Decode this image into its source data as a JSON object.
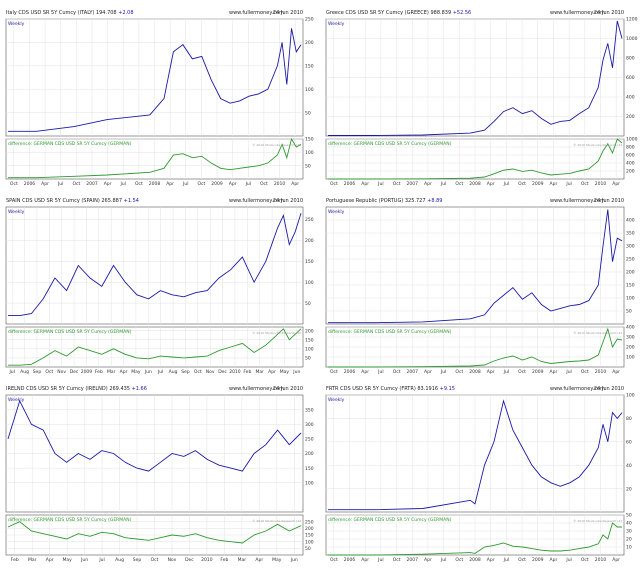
{
  "site": "www.fullermoney.com",
  "date": "24 Jun 2010",
  "copyright": "© 2010 Stockcube Research Ltd",
  "weekly_label": "Weekly",
  "diff_label": "difference: GERMAN CDS USD SR 5Y Cumcy (GERMAN)",
  "colors": {
    "main": "#1a1aa6",
    "diff": "#2e9a2e",
    "grid": "#e2e2e2",
    "frame": "#555555"
  },
  "chart_data": [
    {
      "type": "line",
      "title": "Italy CDS USD SR 5Y Cumcy (ITALY) 194.708",
      "change": "+2.08",
      "xlabels": [
        "Oct",
        "2006",
        "Apr",
        "Jul",
        "Oct",
        "2007",
        "Apr",
        "Jul",
        "Oct",
        "2008",
        "Apr",
        "Jul",
        "Oct",
        "2009",
        "Apr",
        "Jul",
        "Oct",
        "2010",
        "Apr"
      ],
      "ylim": [
        0,
        250
      ],
      "yticks": [
        50,
        100,
        150,
        200,
        250
      ],
      "x": [
        0,
        6,
        14,
        21,
        30,
        33,
        35,
        37,
        39,
        41,
        43,
        45,
        47,
        49,
        51,
        53,
        55,
        57,
        58,
        59,
        60,
        61,
        62
      ],
      "y": [
        10,
        10,
        20,
        35,
        45,
        80,
        180,
        195,
        165,
        170,
        120,
        80,
        70,
        75,
        85,
        90,
        100,
        150,
        200,
        110,
        230,
        180,
        195
      ],
      "diff_ylim": [
        0,
        150
      ],
      "diff_yticks": [
        50,
        100,
        150
      ],
      "diff_y": [
        5,
        5,
        10,
        15,
        25,
        40,
        90,
        95,
        80,
        85,
        60,
        40,
        35,
        40,
        45,
        50,
        60,
        90,
        130,
        80,
        150,
        120,
        130
      ]
    },
    {
      "type": "line",
      "title": "Greece CDS USD SR 5Y Cumcy (GREECE) 988.839",
      "change": "+52.56",
      "xlabels": [
        "Oct",
        "2006",
        "Apr",
        "Jul",
        "Oct",
        "2007",
        "Apr",
        "Jul",
        "Oct",
        "2008",
        "Apr",
        "Jul",
        "Oct",
        "2009",
        "Apr",
        "Jul",
        "Oct",
        "2010",
        "Apr"
      ],
      "ylim": [
        0,
        1200
      ],
      "yticks": [
        200,
        400,
        600,
        800,
        1000,
        1200
      ],
      "x": [
        0,
        10,
        20,
        30,
        33,
        35,
        37,
        39,
        41,
        43,
        45,
        47,
        49,
        51,
        53,
        55,
        57,
        58,
        59,
        60,
        61,
        62
      ],
      "y": [
        5,
        5,
        10,
        30,
        60,
        150,
        250,
        290,
        230,
        260,
        180,
        120,
        150,
        160,
        230,
        290,
        500,
        780,
        950,
        700,
        1180,
        1000
      ],
      "diff_ylim": [
        0,
        1000
      ],
      "diff_yticks": [
        200,
        400,
        600,
        800,
        1000
      ],
      "diff_y": [
        0,
        0,
        5,
        20,
        50,
        130,
        220,
        250,
        190,
        220,
        150,
        100,
        120,
        140,
        200,
        250,
        450,
        700,
        880,
        650,
        1000,
        900
      ]
    },
    {
      "type": "line",
      "title": "SPAIN CDS USD SR 5Y Cumcy (SPAIN) 265.887",
      "change": "+1.54",
      "xlabels": [
        "Jul",
        "Aug",
        "Sep",
        "Oct",
        "Nov",
        "Dec",
        "2009",
        "Feb",
        "Mar",
        "Apr",
        "May",
        "Jun",
        "Jul",
        "Aug",
        "Sep",
        "Oct",
        "Nov",
        "Dec",
        "2010",
        "Feb",
        "Mar",
        "Apr",
        "May",
        "Jun"
      ],
      "ylim": [
        0,
        280
      ],
      "yticks": [
        50,
        100,
        150,
        200,
        250
      ],
      "x": [
        0,
        2,
        4,
        6,
        8,
        10,
        12,
        14,
        16,
        18,
        20,
        22,
        24,
        26,
        28,
        30,
        32,
        34,
        36,
        38,
        40,
        42,
        44,
        46,
        47,
        48,
        49,
        50
      ],
      "y": [
        20,
        20,
        25,
        60,
        110,
        80,
        140,
        110,
        90,
        140,
        100,
        70,
        60,
        80,
        70,
        65,
        75,
        80,
        110,
        130,
        160,
        100,
        150,
        230,
        260,
        190,
        220,
        265
      ],
      "diff_ylim": [
        0,
        220
      ],
      "diff_yticks": [
        50,
        100,
        150,
        200
      ],
      "diff_y": [
        10,
        10,
        15,
        50,
        90,
        60,
        110,
        90,
        70,
        100,
        70,
        50,
        45,
        60,
        55,
        50,
        55,
        60,
        90,
        110,
        130,
        80,
        120,
        180,
        210,
        150,
        180,
        210
      ]
    },
    {
      "type": "line",
      "title": "Portuguese Republic (PORTUG) 325.727",
      "change": "+8.89",
      "xlabels": [
        "Oct",
        "2006",
        "Apr",
        "Jul",
        "Oct",
        "2007",
        "Apr",
        "Jul",
        "Oct",
        "2008",
        "Apr",
        "Jul",
        "Oct",
        "2009",
        "Apr",
        "Jul",
        "Oct",
        "2010",
        "Apr"
      ],
      "ylim": [
        0,
        450
      ],
      "yticks": [
        50,
        100,
        150,
        200,
        250,
        300,
        350,
        400
      ],
      "x": [
        0,
        10,
        20,
        30,
        33,
        35,
        37,
        39,
        41,
        43,
        45,
        47,
        49,
        51,
        53,
        55,
        57,
        58,
        59,
        60,
        61,
        62
      ],
      "y": [
        5,
        5,
        8,
        20,
        35,
        80,
        110,
        140,
        95,
        120,
        75,
        50,
        60,
        70,
        75,
        90,
        150,
        300,
        440,
        240,
        330,
        320
      ],
      "diff_ylim": [
        0,
        400
      ],
      "diff_yticks": [
        100,
        200,
        300,
        400
      ],
      "diff_y": [
        0,
        0,
        3,
        10,
        20,
        60,
        90,
        110,
        70,
        100,
        55,
        35,
        45,
        55,
        60,
        70,
        120,
        250,
        380,
        200,
        280,
        270
      ]
    },
    {
      "type": "line",
      "title": "IRELND CDS USD SR 5Y Cumcy (IRELND) 269.435",
      "change": "+1.66",
      "xlabels": [
        "Feb",
        "Mar",
        "Apr",
        "May",
        "Jun",
        "Jul",
        "Aug",
        "Sep",
        "Oct",
        "Nov",
        "Dec",
        "2010",
        "Feb",
        "Mar",
        "Apr",
        "May",
        "Jun"
      ],
      "ylim": [
        0,
        400
      ],
      "yticks": [
        100,
        150,
        200,
        250,
        300,
        350
      ],
      "x": [
        0,
        2,
        4,
        6,
        8,
        10,
        12,
        14,
        16,
        18,
        20,
        22,
        24,
        26,
        28,
        30,
        32,
        34,
        36,
        38,
        40,
        42,
        44,
        46,
        48,
        50
      ],
      "y": [
        250,
        380,
        300,
        280,
        200,
        170,
        200,
        180,
        210,
        200,
        170,
        150,
        140,
        170,
        200,
        190,
        210,
        180,
        160,
        150,
        140,
        200,
        230,
        280,
        230,
        270
      ],
      "diff_ylim": [
        0,
        300
      ],
      "diff_yticks": [
        50,
        100,
        150,
        200,
        250
      ],
      "diff_y": [
        210,
        250,
        180,
        160,
        140,
        120,
        160,
        140,
        170,
        160,
        130,
        120,
        110,
        130,
        150,
        140,
        160,
        130,
        110,
        100,
        90,
        150,
        180,
        230,
        180,
        220
      ]
    },
    {
      "type": "line",
      "title": "FRTR CDS USD SR 5Y Cumcy (FRTR) 83.1916",
      "change": "+9.15",
      "xlabels": [
        "Oct",
        "2006",
        "Apr",
        "Jul",
        "Oct",
        "2007",
        "Apr",
        "Jul",
        "Oct",
        "2008",
        "Apr",
        "Jul",
        "Oct",
        "2009",
        "Apr",
        "Jul",
        "Oct",
        "2010",
        "Apr"
      ],
      "ylim": [
        0,
        100
      ],
      "yticks": [
        20,
        40,
        60,
        80,
        100
      ],
      "x": [
        0,
        10,
        20,
        30,
        31,
        33,
        35,
        37,
        39,
        41,
        43,
        45,
        47,
        49,
        51,
        53,
        55,
        57,
        58,
        59,
        60,
        61,
        62
      ],
      "y": [
        2,
        2,
        3,
        10,
        7,
        40,
        60,
        95,
        70,
        55,
        40,
        30,
        25,
        22,
        25,
        30,
        40,
        55,
        75,
        60,
        85,
        80,
        85
      ],
      "diff_ylim": [
        0,
        50
      ],
      "diff_yticks": [
        10,
        20,
        30,
        40,
        50
      ],
      "diff_y": [
        0,
        0,
        1,
        3,
        2,
        10,
        12,
        15,
        11,
        10,
        8,
        6,
        5,
        5,
        6,
        8,
        10,
        14,
        25,
        20,
        40,
        35,
        35
      ]
    }
  ]
}
